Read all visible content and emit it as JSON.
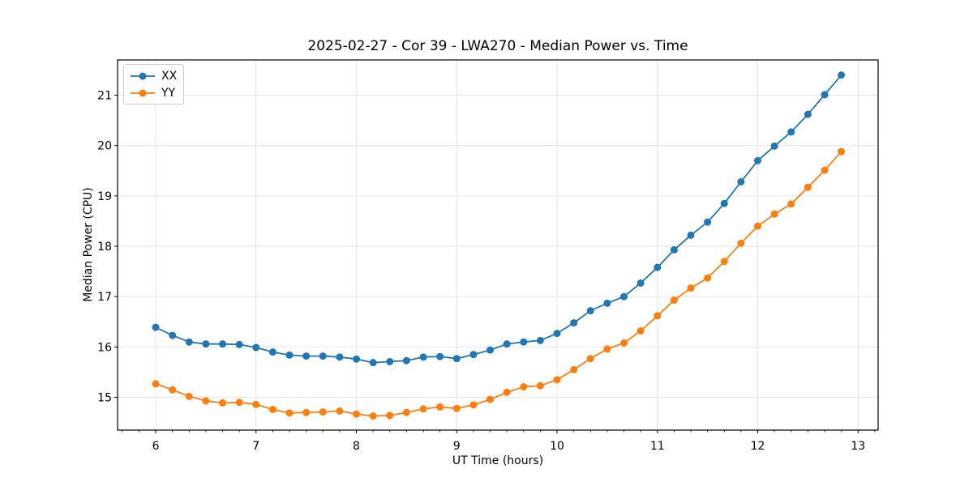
{
  "figure": {
    "background": "#ffffff",
    "plot_border_color": "#000000",
    "grid_color": "#e6e6e6"
  },
  "chart_data": {
    "type": "line",
    "title": "2025-02-27 - Cor 39 - LWA270 - Median Power vs. Time",
    "xlabel": "UT Time (hours)",
    "ylabel": "Median Power (CPU)",
    "xlim": [
      5.62,
      13.2
    ],
    "ylim": [
      14.35,
      21.7
    ],
    "x_ticks": [
      6,
      7,
      8,
      9,
      10,
      11,
      12,
      13
    ],
    "y_ticks": [
      15,
      16,
      17,
      18,
      19,
      20,
      21
    ],
    "x_minor_tick_step": 0.16667,
    "grid": true,
    "legend_position": "upper-left",
    "x": [
      6.0,
      6.167,
      6.333,
      6.5,
      6.667,
      6.833,
      7.0,
      7.167,
      7.333,
      7.5,
      7.667,
      7.833,
      8.0,
      8.167,
      8.333,
      8.5,
      8.667,
      8.833,
      9.0,
      9.167,
      9.333,
      9.5,
      9.667,
      9.833,
      10.0,
      10.167,
      10.333,
      10.5,
      10.667,
      10.833,
      11.0,
      11.167,
      11.333,
      11.5,
      11.667,
      11.833,
      12.0,
      12.167,
      12.333,
      12.5,
      12.667,
      12.833
    ],
    "series": [
      {
        "name": "XX",
        "color": "#1f77b4",
        "marker": "circle",
        "values": [
          16.39,
          16.23,
          16.1,
          16.06,
          16.06,
          16.05,
          15.99,
          15.9,
          15.84,
          15.82,
          15.82,
          15.8,
          15.76,
          15.69,
          15.71,
          15.73,
          15.8,
          15.81,
          15.77,
          15.85,
          15.94,
          16.06,
          16.1,
          16.13,
          16.27,
          16.48,
          16.72,
          16.87,
          17.0,
          17.27,
          17.58,
          17.93,
          18.22,
          18.48,
          18.85,
          19.28,
          19.7,
          19.99,
          20.27,
          20.62,
          21.01,
          21.4
        ]
      },
      {
        "name": "YY",
        "color": "#ff7f0e",
        "marker": "circle",
        "values": [
          15.27,
          15.15,
          15.02,
          14.93,
          14.89,
          14.9,
          14.86,
          14.76,
          14.69,
          14.7,
          14.71,
          14.73,
          14.67,
          14.63,
          14.64,
          14.7,
          14.77,
          14.81,
          14.78,
          14.85,
          14.96,
          15.1,
          15.21,
          15.23,
          15.35,
          15.55,
          15.77,
          15.96,
          16.08,
          16.32,
          16.62,
          16.93,
          17.17,
          17.37,
          17.7,
          18.06,
          18.4,
          18.64,
          18.84,
          19.17,
          19.51,
          19.88
        ]
      }
    ]
  }
}
